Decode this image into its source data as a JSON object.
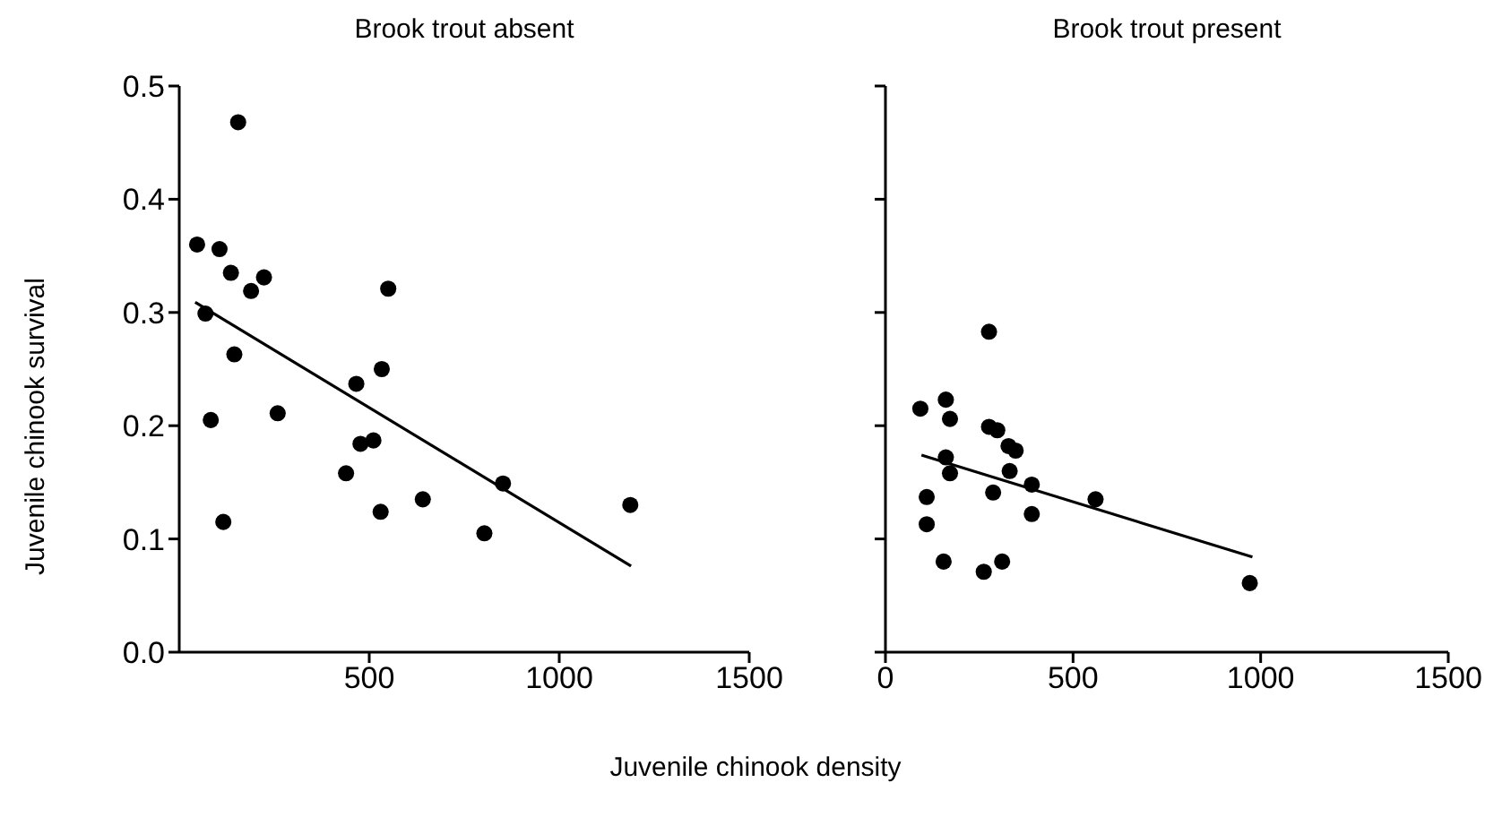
{
  "chart_data": [
    {
      "type": "scatter",
      "title": "Brook trout absent",
      "xlabel": "Juvenile chinook density",
      "ylabel": "Juvenile chinook survival",
      "marker": "circle",
      "xlim": [
        0,
        1500
      ],
      "xticks": [
        500,
        1000,
        1500
      ],
      "ylim": [
        0,
        0.5
      ],
      "yticks": [
        {
          "value": 0,
          "label": "0.0"
        },
        0.1,
        0.2,
        0.3,
        0.4,
        0.5
      ],
      "series": [
        {
          "color": "#000000",
          "x": [
            155,
            47,
            106,
            136,
            189,
            223,
            550,
            69,
            145,
            533,
            466,
            83,
            259,
            477,
            511,
            439,
            641,
            530,
            116,
            803,
            852,
            1187
          ],
          "values": [
            0.468,
            0.36,
            0.356,
            0.335,
            0.319,
            0.331,
            0.321,
            0.299,
            0.263,
            0.25,
            0.237,
            0.205,
            0.211,
            0.184,
            0.187,
            0.158,
            0.135,
            0.124,
            0.115,
            0.105,
            0.149,
            0.13
          ]
        },
        {
          "type": "line",
          "color": "#000000",
          "marker": "none",
          "x": [
            42,
            1189
          ],
          "values": [
            0.309,
            0.076
          ]
        }
      ]
    },
    {
      "type": "scatter",
      "title": "Brook trout present",
      "marker": "circle",
      "tick_labels": "x",
      "xlim": [
        0,
        1500
      ],
      "xticks": [
        0,
        500,
        1000,
        1500
      ],
      "ylim": [
        0,
        0.5
      ],
      "yticks": [
        {
          "value": 0,
          "label": null
        },
        {
          "value": 0.1,
          "label": null
        },
        {
          "value": 0.2,
          "label": null
        },
        {
          "value": 0.3,
          "label": null
        },
        {
          "value": 0.4,
          "label": null
        },
        {
          "value": 0.5,
          "label": null
        }
      ],
      "series": [
        {
          "color": "#000000",
          "x": [
            93,
            161,
            172,
            276,
            276,
            298,
            328,
            347,
            161,
            172,
            331,
            390,
            560,
            287,
            110,
            110,
            390,
            155,
            262,
            311,
            971
          ],
          "values": [
            0.215,
            0.223,
            0.206,
            0.283,
            0.199,
            0.196,
            0.182,
            0.178,
            0.172,
            0.158,
            0.16,
            0.148,
            0.135,
            0.141,
            0.137,
            0.113,
            0.122,
            0.08,
            0.071,
            0.08,
            0.061
          ]
        },
        {
          "type": "line",
          "color": "#000000",
          "marker": "none",
          "x": [
            96,
            978
          ],
          "values": [
            0.174,
            0.084
          ]
        }
      ]
    }
  ]
}
